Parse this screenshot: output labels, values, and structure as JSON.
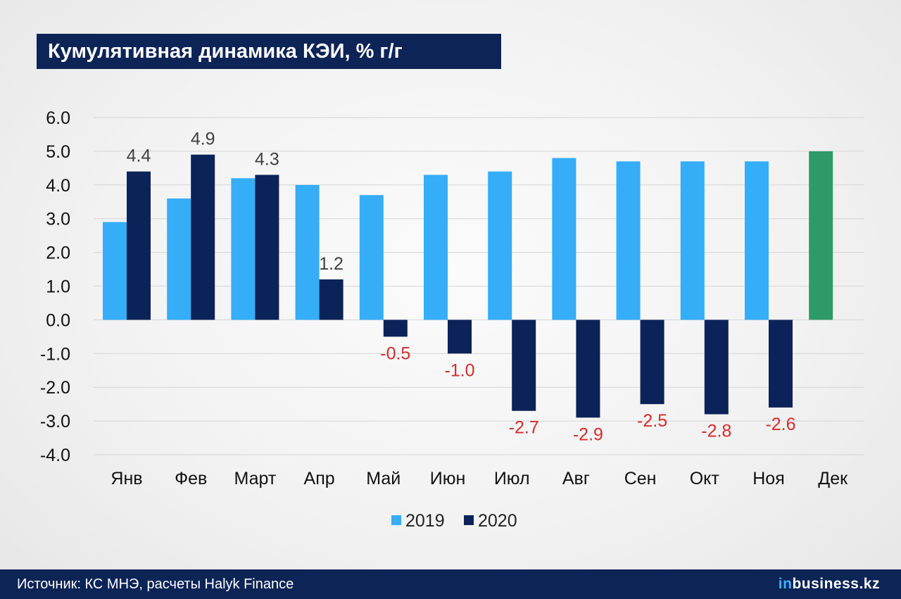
{
  "title": "Кумулятивная динамика КЭИ, % г/г",
  "footer": {
    "source": "Источник: КС МНЭ, расчеты Halyk Finance",
    "logo_prefix": "in",
    "logo_rest": "business.kz"
  },
  "colors": {
    "series_2019": "#35adf7",
    "series_2020": "#0b2358",
    "december": "#2e9a68",
    "negative_label": "#d62b2b",
    "positive_label": "#404040",
    "grid": "#d4d4d4"
  },
  "chart_data": {
    "type": "bar",
    "categories": [
      "Янв",
      "Фев",
      "Март",
      "Апр",
      "Май",
      "Июн",
      "Июл",
      "Авг",
      "Сен",
      "Окт",
      "Ноя",
      "Дек"
    ],
    "series": [
      {
        "name": "2019",
        "values": [
          2.9,
          3.6,
          4.2,
          4.0,
          3.7,
          4.3,
          4.4,
          4.8,
          4.7,
          4.7,
          4.7,
          5.0
        ]
      },
      {
        "name": "2020",
        "values": [
          4.4,
          4.9,
          4.3,
          1.2,
          -0.5,
          -1.0,
          -2.7,
          -2.9,
          -2.5,
          -2.8,
          -2.6,
          null
        ]
      }
    ],
    "data_labels_2020": [
      "4.4",
      "4.9",
      "4.3",
      "1.2",
      "-0.5",
      "-1.0",
      "-2.7",
      "-2.9",
      "-2.5",
      "-2.8",
      "-2.6",
      ""
    ],
    "y_ticks": [
      "6.0",
      "5.0",
      "4.0",
      "3.0",
      "2.0",
      "1.0",
      "0.0",
      "-1.0",
      "-2.0",
      "-3.0",
      "-4.0"
    ],
    "ylim": [
      -4.0,
      6.0
    ],
    "grid": true,
    "legend_position": "bottom",
    "highlight_note": "Dec 2019 bar shown in green",
    "xlabel": "",
    "ylabel": ""
  }
}
